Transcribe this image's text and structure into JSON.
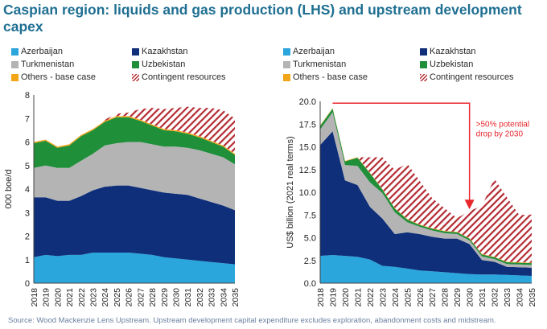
{
  "title": "Caspian region: liquids and gas production (LHS) and upstream development capex",
  "source": "Source: Wood Mackenzie Lens Upstream. Upstream development capital expenditure excludes exploration, abandonment costs and midstream.",
  "colors": {
    "Azerbaijan": "#2aa6dc",
    "Kazakhstan": "#0f2f7a",
    "Turkmenistan": "#b4b4b4",
    "Uzbekistan": "#1f8f3a",
    "Others - base case": "#f2a516",
    "Contingent resources": "#b42a33"
  },
  "legend": [
    {
      "name": "Azerbaijan",
      "icon": "solid-swatch"
    },
    {
      "name": "Kazakhstan",
      "icon": "solid-swatch"
    },
    {
      "name": "Turkmenistan",
      "icon": "solid-swatch"
    },
    {
      "name": "Uzbekistan",
      "icon": "solid-swatch"
    },
    {
      "name": "Others - base case",
      "icon": "solid-swatch"
    },
    {
      "name": "Contingent resources",
      "icon": "hatched-swatch"
    }
  ],
  "chart_data": [
    {
      "type": "area",
      "stacked": true,
      "x": [
        "2018",
        "2019",
        "2020",
        "2021",
        "2022",
        "2023",
        "2024",
        "2025",
        "2026",
        "2027",
        "2028",
        "2029",
        "2030",
        "2031",
        "2032",
        "2033",
        "2034",
        "2035"
      ],
      "ylabel": "000 boe/d",
      "ylim": [
        0,
        8
      ],
      "yticks": [
        "0",
        "1",
        "2",
        "3",
        "4",
        "5",
        "6",
        "7",
        "8"
      ],
      "grid": false,
      "legend_position": "top",
      "series": [
        {
          "name": "Azerbaijan",
          "values": [
            1.1,
            1.2,
            1.15,
            1.2,
            1.2,
            1.3,
            1.3,
            1.3,
            1.3,
            1.25,
            1.2,
            1.1,
            1.05,
            1.0,
            0.95,
            0.9,
            0.85,
            0.8
          ]
        },
        {
          "name": "Kazakhstan",
          "values": [
            2.55,
            2.45,
            2.35,
            2.3,
            2.5,
            2.65,
            2.8,
            2.85,
            2.85,
            2.8,
            2.75,
            2.75,
            2.75,
            2.75,
            2.65,
            2.55,
            2.45,
            2.3
          ]
        },
        {
          "name": "Turkmenistan",
          "values": [
            1.25,
            1.35,
            1.4,
            1.4,
            1.5,
            1.55,
            1.75,
            1.8,
            1.85,
            1.95,
            1.95,
            1.95,
            2.0,
            2.0,
            2.05,
            2.05,
            2.05,
            1.95
          ]
        },
        {
          "name": "Uzbekistan",
          "values": [
            1.05,
            1.05,
            0.85,
            0.95,
            1.05,
            1.0,
            1.0,
            1.1,
            1.05,
            0.9,
            0.8,
            0.7,
            0.65,
            0.6,
            0.55,
            0.5,
            0.45,
            0.4
          ]
        },
        {
          "name": "Others - base case",
          "values": [
            0.05,
            0.05,
            0.05,
            0.05,
            0.05,
            0.05,
            0.05,
            0.05,
            0.05,
            0.05,
            0.05,
            0.05,
            0.05,
            0.05,
            0.05,
            0.05,
            0.05,
            0.05
          ]
        },
        {
          "name": "Contingent resources",
          "values": [
            0,
            0,
            0,
            0,
            0,
            0,
            0.05,
            0.1,
            0.15,
            0.45,
            0.7,
            0.85,
            0.95,
            1.1,
            1.2,
            1.4,
            1.5,
            1.5
          ]
        }
      ]
    },
    {
      "type": "area",
      "stacked": true,
      "x": [
        "2018",
        "2019",
        "2020",
        "2021",
        "2022",
        "2023",
        "2024",
        "2025",
        "2026",
        "2027",
        "2028",
        "2029",
        "2030",
        "2031",
        "2032",
        "2033",
        "2034",
        "2035"
      ],
      "ylabel": "US$ billion (2021 real terms)",
      "ylim": [
        0,
        20
      ],
      "yticks": [
        "0.0",
        "2.5",
        "5.0",
        "7.5",
        "10.0",
        "12.5",
        "15.0",
        "17.5",
        "20.0"
      ],
      "grid": false,
      "legend_position": "top",
      "annotation": {
        "text": ">50% potential drop by 2030",
        "lines": [
          ">50% potential",
          "drop by 2030"
        ],
        "arrow_from": "2019",
        "arrow_to": "2030",
        "arrow_y": 19.8,
        "arrow_end_y": 8.3
      },
      "series": [
        {
          "name": "Azerbaijan",
          "values": [
            3.0,
            3.1,
            3.0,
            2.9,
            2.6,
            1.9,
            1.8,
            1.6,
            1.4,
            1.3,
            1.2,
            1.1,
            1.0,
            0.95,
            0.95,
            0.9,
            0.85,
            0.8
          ]
        },
        {
          "name": "Kazakhstan",
          "values": [
            12.2,
            13.6,
            8.3,
            7.9,
            5.8,
            5.2,
            3.6,
            4.0,
            4.0,
            3.8,
            3.7,
            3.8,
            3.3,
            1.6,
            1.4,
            0.9,
            0.9,
            0.9
          ]
        },
        {
          "name": "Turkmenistan",
          "values": [
            1.7,
            2.1,
            1.7,
            2.1,
            2.7,
            2.8,
            2.4,
            1.1,
            0.8,
            0.7,
            0.6,
            0.5,
            0.4,
            0.4,
            0.3,
            0.3,
            0.3,
            0.3
          ]
        },
        {
          "name": "Uzbekistan",
          "values": [
            0.4,
            0.4,
            0.4,
            0.9,
            1.0,
            0.4,
            0.4,
            0.3,
            0.2,
            0.2,
            0.2,
            0.2,
            0.2,
            0.2,
            0.2,
            0.2,
            0.2,
            0.2
          ]
        },
        {
          "name": "Others - base case",
          "values": [
            0.05,
            0.05,
            0.05,
            0.05,
            0.05,
            0.05,
            0.05,
            0.05,
            0.05,
            0.05,
            0.05,
            0.05,
            0.05,
            0.05,
            0.05,
            0.05,
            0.05,
            0.05
          ]
        },
        {
          "name": "Contingent resources",
          "values": [
            0,
            0,
            0,
            0,
            1.7,
            3.5,
            4.2,
            6.1,
            4.8,
            3.3,
            2.5,
            1.5,
            3.0,
            5.3,
            8.6,
            7.1,
            5.2,
            5.3
          ]
        }
      ]
    }
  ]
}
